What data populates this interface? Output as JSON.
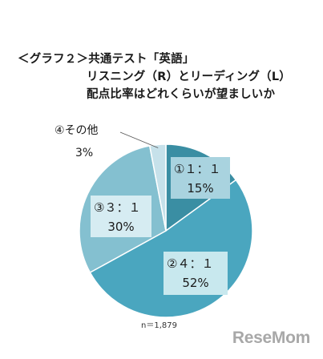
{
  "title": {
    "line1": "＜グラフ２＞共通テスト「英語」",
    "line2": "リスニング（R）とリーディング（L）",
    "line3": "配点比率はどれくらいが望ましいか"
  },
  "chart_data": {
    "type": "pie",
    "slices": [
      {
        "label": "①１：１",
        "pct_label": "15%",
        "value": 15,
        "color": "#3a8ea3"
      },
      {
        "label": "②４：１",
        "pct_label": "52%",
        "value": 52,
        "color": "#4aa6bf"
      },
      {
        "label": "③３：１",
        "pct_label": "30%",
        "value": 30,
        "color": "#84c0d0"
      },
      {
        "label": "④その他",
        "pct_label": "3%",
        "value": 3,
        "color": "#c6e1ea"
      }
    ]
  },
  "note": "n＝1,879",
  "brand": "ReseMom"
}
